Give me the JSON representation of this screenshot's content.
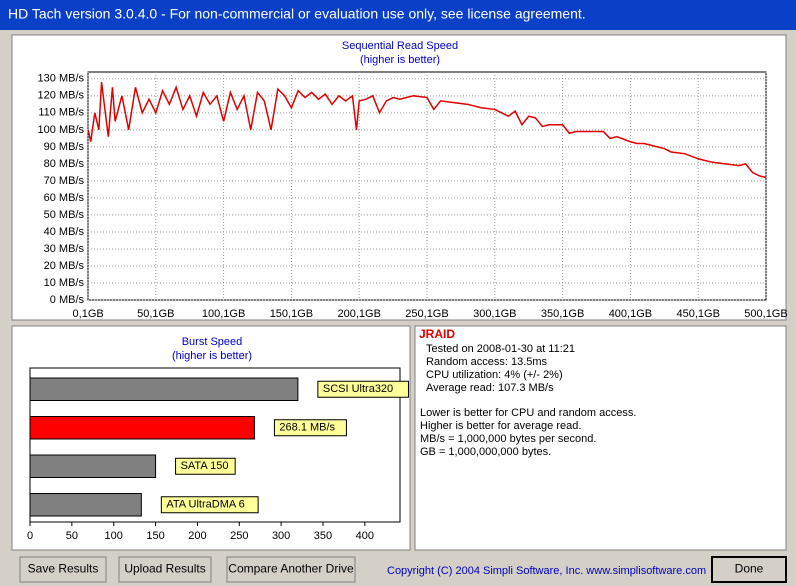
{
  "window_title": "HD Tach version 3.0.4.0  - For non-commercial or evaluation use only, see license agreement.",
  "read_chart": {
    "type": "line",
    "title": "Sequential Read Speed",
    "subtitle": "(higher is better)",
    "x": [
      0.1,
      2,
      5,
      8,
      10,
      12,
      15,
      18,
      20,
      25,
      30,
      35,
      40,
      45,
      50,
      55,
      60,
      65,
      70,
      75,
      80,
      85,
      90,
      95,
      100,
      105,
      110,
      115,
      120,
      125,
      130,
      135,
      140,
      145,
      150,
      155,
      160,
      165,
      170,
      175,
      180,
      185,
      190,
      195,
      198,
      200,
      205,
      210,
      215,
      220,
      225,
      230,
      240,
      250,
      255,
      260,
      270,
      280,
      290,
      300,
      305,
      310,
      315,
      320,
      325,
      330,
      335,
      340,
      350,
      355,
      360,
      370,
      380,
      385,
      390,
      400,
      405,
      410,
      420,
      425,
      430,
      440,
      450,
      455,
      460,
      470,
      480,
      485,
      490,
      495,
      500
    ],
    "series": [
      {
        "name": "JRAID",
        "color": "#e00000",
        "values": [
          100,
          93,
          110,
          100,
          128,
          115,
          96,
          125,
          105,
          120,
          100,
          125,
          110,
          118,
          110,
          123,
          115,
          125,
          112,
          120,
          108,
          122,
          115,
          120,
          105,
          122,
          112,
          120,
          100,
          122,
          117,
          100,
          124,
          120,
          113,
          123,
          119,
          122,
          118,
          121,
          115,
          120,
          117,
          120,
          100,
          117,
          118,
          120,
          110,
          117,
          119,
          118,
          120,
          119,
          112,
          117,
          116,
          115,
          113,
          112,
          110,
          108,
          111,
          103,
          108,
          107,
          102,
          103,
          103,
          98,
          99,
          99,
          99,
          95,
          96,
          93,
          92,
          92,
          90,
          89,
          87,
          86,
          83,
          82,
          81,
          80,
          79,
          80,
          75,
          73,
          72
        ]
      }
    ],
    "xlim": [
      0,
      500
    ],
    "ylim": [
      0,
      134
    ],
    "xticks": [
      {
        "value": 0.1,
        "label": "0,1GB"
      },
      {
        "value": 50,
        "label": "50,1GB"
      },
      {
        "value": 100,
        "label": "100,1GB"
      },
      {
        "value": 150,
        "label": "150,1GB"
      },
      {
        "value": 200,
        "label": "200,1GB"
      },
      {
        "value": 250,
        "label": "250,1GB"
      },
      {
        "value": 300,
        "label": "300,1GB"
      },
      {
        "value": 350,
        "label": "350,1GB"
      },
      {
        "value": 400,
        "label": "400,1GB"
      },
      {
        "value": 450,
        "label": "450,1GB"
      },
      {
        "value": 500,
        "label": "500,1GB"
      }
    ],
    "yticks": [
      {
        "value": 0,
        "label": "0 MB/s"
      },
      {
        "value": 10,
        "label": "10 MB/s"
      },
      {
        "value": 20,
        "label": "20 MB/s"
      },
      {
        "value": 30,
        "label": "30 MB/s"
      },
      {
        "value": 40,
        "label": "40 MB/s"
      },
      {
        "value": 50,
        "label": "50 MB/s"
      },
      {
        "value": 60,
        "label": "60 MB/s"
      },
      {
        "value": 70,
        "label": "70 MB/s"
      },
      {
        "value": 80,
        "label": "80 MB/s"
      },
      {
        "value": 90,
        "label": "90 MB/s"
      },
      {
        "value": 100,
        "label": "100 MB/s"
      },
      {
        "value": 110,
        "label": "110 MB/s"
      },
      {
        "value": 120,
        "label": "120 MB/s"
      },
      {
        "value": 130,
        "label": "130 MB/s"
      }
    ],
    "grid": true
  },
  "burst_chart": {
    "type": "hbar",
    "title": "Burst Speed",
    "subtitle": "(higher is better)",
    "categories": [
      "SCSI Ultra320",
      null,
      "SATA 150",
      "ATA UltraDMA 6"
    ],
    "values": [
      320,
      268.1,
      150,
      133
    ],
    "value_labels": [
      null,
      "268.1 MB/s",
      null,
      null
    ],
    "colors": [
      "#808080",
      "#ff0000",
      "#808080",
      "#808080"
    ],
    "xlim": [
      0,
      442
    ],
    "xticks": [
      0,
      50,
      100,
      150,
      200,
      250,
      300,
      350,
      400
    ]
  },
  "info": {
    "drive": "JRAID",
    "lines": [
      "Tested on 2008-01-30 at 11:21",
      "Random access: 13.5ms",
      "CPU utilization: 4% (+/- 2%)",
      "Average read: 107.3 MB/s"
    ],
    "notes": [
      "Lower is better for CPU and random access.",
      "Higher is better for average read.",
      "MB/s = 1,000,000 bytes per second.",
      "GB = 1,000,000,000 bytes."
    ]
  },
  "buttons": [
    "Save Results",
    "Upload Results",
    "Compare Another Drive",
    "Done"
  ],
  "copyright": "Copyright (C) 2004 Simpli Software, Inc. www.simplisoftware.com"
}
